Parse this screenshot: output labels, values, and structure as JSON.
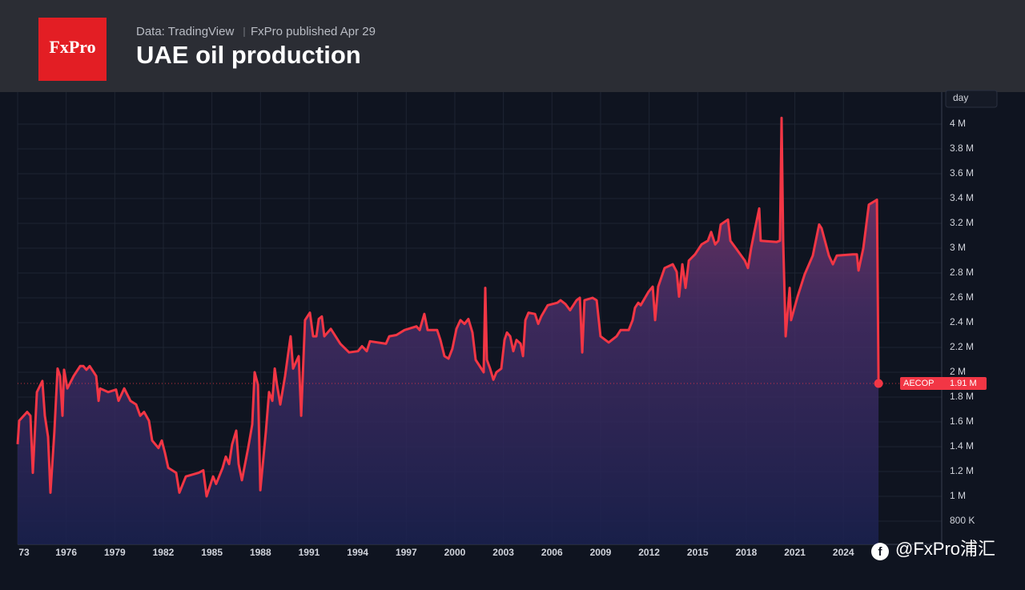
{
  "header": {
    "logo": "FxPro",
    "source": "Data: TradingView",
    "publisher": "FxPro published Apr 29"
  },
  "watermark": "@FxPro浦汇",
  "chart_data": {
    "type": "area",
    "title": "UAE oil production",
    "unit_label": "day",
    "symbol": "AECOP",
    "color": "#f23645",
    "grid": true,
    "xlim": [
      1973,
      2030.07
    ],
    "ylim": [
      613000,
      4258000
    ],
    "xticks": [
      {
        "value": 1973,
        "label": "73"
      },
      1976,
      1979,
      1982,
      1985,
      1988,
      1991,
      1994,
      1997,
      2000,
      2003,
      2006,
      2009,
      2012,
      2015,
      2018,
      2021,
      2024
    ],
    "yticks": [
      {
        "value": 800000,
        "label": "800 K"
      },
      {
        "value": 1000000,
        "label": "1 M"
      },
      {
        "value": 1200000,
        "label": "1.2 M"
      },
      {
        "value": 1400000,
        "label": "1.4 M"
      },
      {
        "value": 1600000,
        "label": "1.6 M"
      },
      {
        "value": 1800000,
        "label": "1.8 M"
      },
      {
        "value": 2000000,
        "label": "2 M"
      },
      {
        "value": 2200000,
        "label": "2.2 M"
      },
      {
        "value": 2400000,
        "label": "2.4 M"
      },
      {
        "value": 2600000,
        "label": "2.6 M"
      },
      {
        "value": 2800000,
        "label": "2.8 M"
      },
      {
        "value": 3000000,
        "label": "3 M"
      },
      {
        "value": 3200000,
        "label": "3.2 M"
      },
      {
        "value": 3400000,
        "label": "3.4 M"
      },
      {
        "value": 3600000,
        "label": "3.6 M"
      },
      {
        "value": 3800000,
        "label": "3.8 M"
      },
      {
        "value": 4000000,
        "label": "4 M"
      }
    ],
    "last_value": {
      "value": 1910000,
      "label": "1.91 M"
    },
    "x": [
      1973.0,
      1973.1,
      1973.59,
      1973.79,
      1973.94,
      1974.19,
      1974.53,
      1974.68,
      1974.88,
      1975.03,
      1975.27,
      1975.47,
      1975.62,
      1975.77,
      1975.87,
      1976.07,
      1976.46,
      1976.86,
      1977.06,
      1977.25,
      1977.45,
      1977.85,
      1978.0,
      1978.09,
      1978.59,
      1979.08,
      1979.23,
      1979.58,
      1979.97,
      1980.32,
      1980.57,
      1980.81,
      1981.11,
      1981.31,
      1981.7,
      1981.9,
      1982.1,
      1982.3,
      1982.79,
      1982.99,
      1983.39,
      1984.18,
      1984.47,
      1984.67,
      1985.07,
      1985.26,
      1985.66,
      1985.86,
      1986.06,
      1986.25,
      1986.5,
      1986.65,
      1986.85,
      1987.24,
      1987.49,
      1987.64,
      1987.84,
      1987.99,
      1988.33,
      1988.53,
      1988.73,
      1988.88,
      1989.02,
      1989.22,
      1989.52,
      1989.86,
      1990.01,
      1990.36,
      1990.51,
      1990.75,
      1991.05,
      1991.25,
      1991.45,
      1991.6,
      1991.79,
      1991.94,
      1992.34,
      1992.93,
      1993.47,
      1994.02,
      1994.27,
      1994.56,
      1994.76,
      1995.75,
      1995.95,
      1996.39,
      1996.89,
      1997.63,
      1997.83,
      1998.12,
      1998.32,
      1998.91,
      1999.11,
      1999.36,
      1999.61,
      1999.85,
      2000.1,
      2000.35,
      2000.6,
      2000.84,
      2001.09,
      2001.29,
      2001.78,
      2001.88,
      2001.98,
      2002.18,
      2002.38,
      2002.57,
      2002.87,
      2003.07,
      2003.22,
      2003.42,
      2003.61,
      2003.81,
      2004.06,
      2004.21,
      2004.36,
      2004.55,
      2004.95,
      2005.15,
      2005.34,
      2005.74,
      2006.33,
      2006.53,
      2006.83,
      2007.12,
      2007.52,
      2007.72,
      2007.87,
      2008.01,
      2008.51,
      2008.76,
      2009.0,
      2009.5,
      2009.99,
      2010.24,
      2010.74,
      2010.98,
      2011.13,
      2011.33,
      2011.48,
      2011.97,
      2012.22,
      2012.37,
      2012.56,
      2012.96,
      2013.46,
      2013.7,
      2013.85,
      2014.05,
      2014.25,
      2014.45,
      2014.84,
      2015.24,
      2015.63,
      2015.83,
      2016.08,
      2016.27,
      2016.42,
      2016.87,
      2017.02,
      2017.41,
      2017.91,
      2018.1,
      2018.3,
      2018.5,
      2018.8,
      2018.89,
      2019.88,
      2020.08,
      2020.18,
      2020.28,
      2020.43,
      2020.68,
      2020.77,
      2021.17,
      2021.61,
      2022.11,
      2022.5,
      2022.65,
      2023.1,
      2023.35,
      2023.59,
      2024.58,
      2024.83,
      2024.93,
      2025.23,
      2025.57,
      2026.07,
      2026.17
    ],
    "values": [
      1420000,
      1610000,
      1680000,
      1650000,
      1190000,
      1840000,
      1930000,
      1650000,
      1480000,
      1030000,
      1520000,
      2030000,
      1970000,
      1650000,
      2020000,
      1870000,
      1970000,
      2050000,
      2050000,
      2020000,
      2050000,
      1970000,
      1770000,
      1870000,
      1840000,
      1860000,
      1770000,
      1870000,
      1770000,
      1740000,
      1650000,
      1680000,
      1610000,
      1450000,
      1390000,
      1450000,
      1350000,
      1230000,
      1190000,
      1030000,
      1160000,
      1190000,
      1210000,
      1000000,
      1160000,
      1100000,
      1230000,
      1320000,
      1260000,
      1420000,
      1530000,
      1260000,
      1130000,
      1390000,
      1580000,
      2000000,
      1900000,
      1050000,
      1520000,
      1840000,
      1770000,
      2030000,
      1900000,
      1740000,
      1970000,
      2290000,
      2030000,
      2130000,
      1650000,
      2420000,
      2480000,
      2290000,
      2290000,
      2430000,
      2450000,
      2290000,
      2350000,
      2230000,
      2160000,
      2170000,
      2210000,
      2170000,
      2250000,
      2230000,
      2290000,
      2300000,
      2340000,
      2370000,
      2340000,
      2470000,
      2340000,
      2340000,
      2260000,
      2130000,
      2110000,
      2190000,
      2350000,
      2420000,
      2390000,
      2430000,
      2320000,
      2100000,
      2000000,
      2680000,
      2100000,
      2030000,
      1940000,
      2000000,
      2030000,
      2260000,
      2320000,
      2290000,
      2170000,
      2260000,
      2230000,
      2130000,
      2420000,
      2480000,
      2470000,
      2390000,
      2450000,
      2540000,
      2560000,
      2580000,
      2550000,
      2500000,
      2580000,
      2600000,
      2160000,
      2580000,
      2600000,
      2580000,
      2290000,
      2240000,
      2290000,
      2340000,
      2340000,
      2420000,
      2520000,
      2560000,
      2540000,
      2650000,
      2690000,
      2420000,
      2690000,
      2840000,
      2870000,
      2810000,
      2610000,
      2870000,
      2680000,
      2900000,
      2950000,
      3030000,
      3060000,
      3130000,
      3030000,
      3060000,
      3190000,
      3230000,
      3060000,
      2990000,
      2900000,
      2840000,
      3000000,
      3130000,
      3320000,
      3060000,
      3050000,
      3060000,
      4050000,
      3060000,
      2290000,
      2680000,
      2420000,
      2610000,
      2790000,
      2940000,
      3190000,
      3160000,
      2940000,
      2870000,
      2940000,
      2950000,
      2950000,
      2820000,
      3000000,
      3350000,
      3390000,
      1910000
    ]
  }
}
